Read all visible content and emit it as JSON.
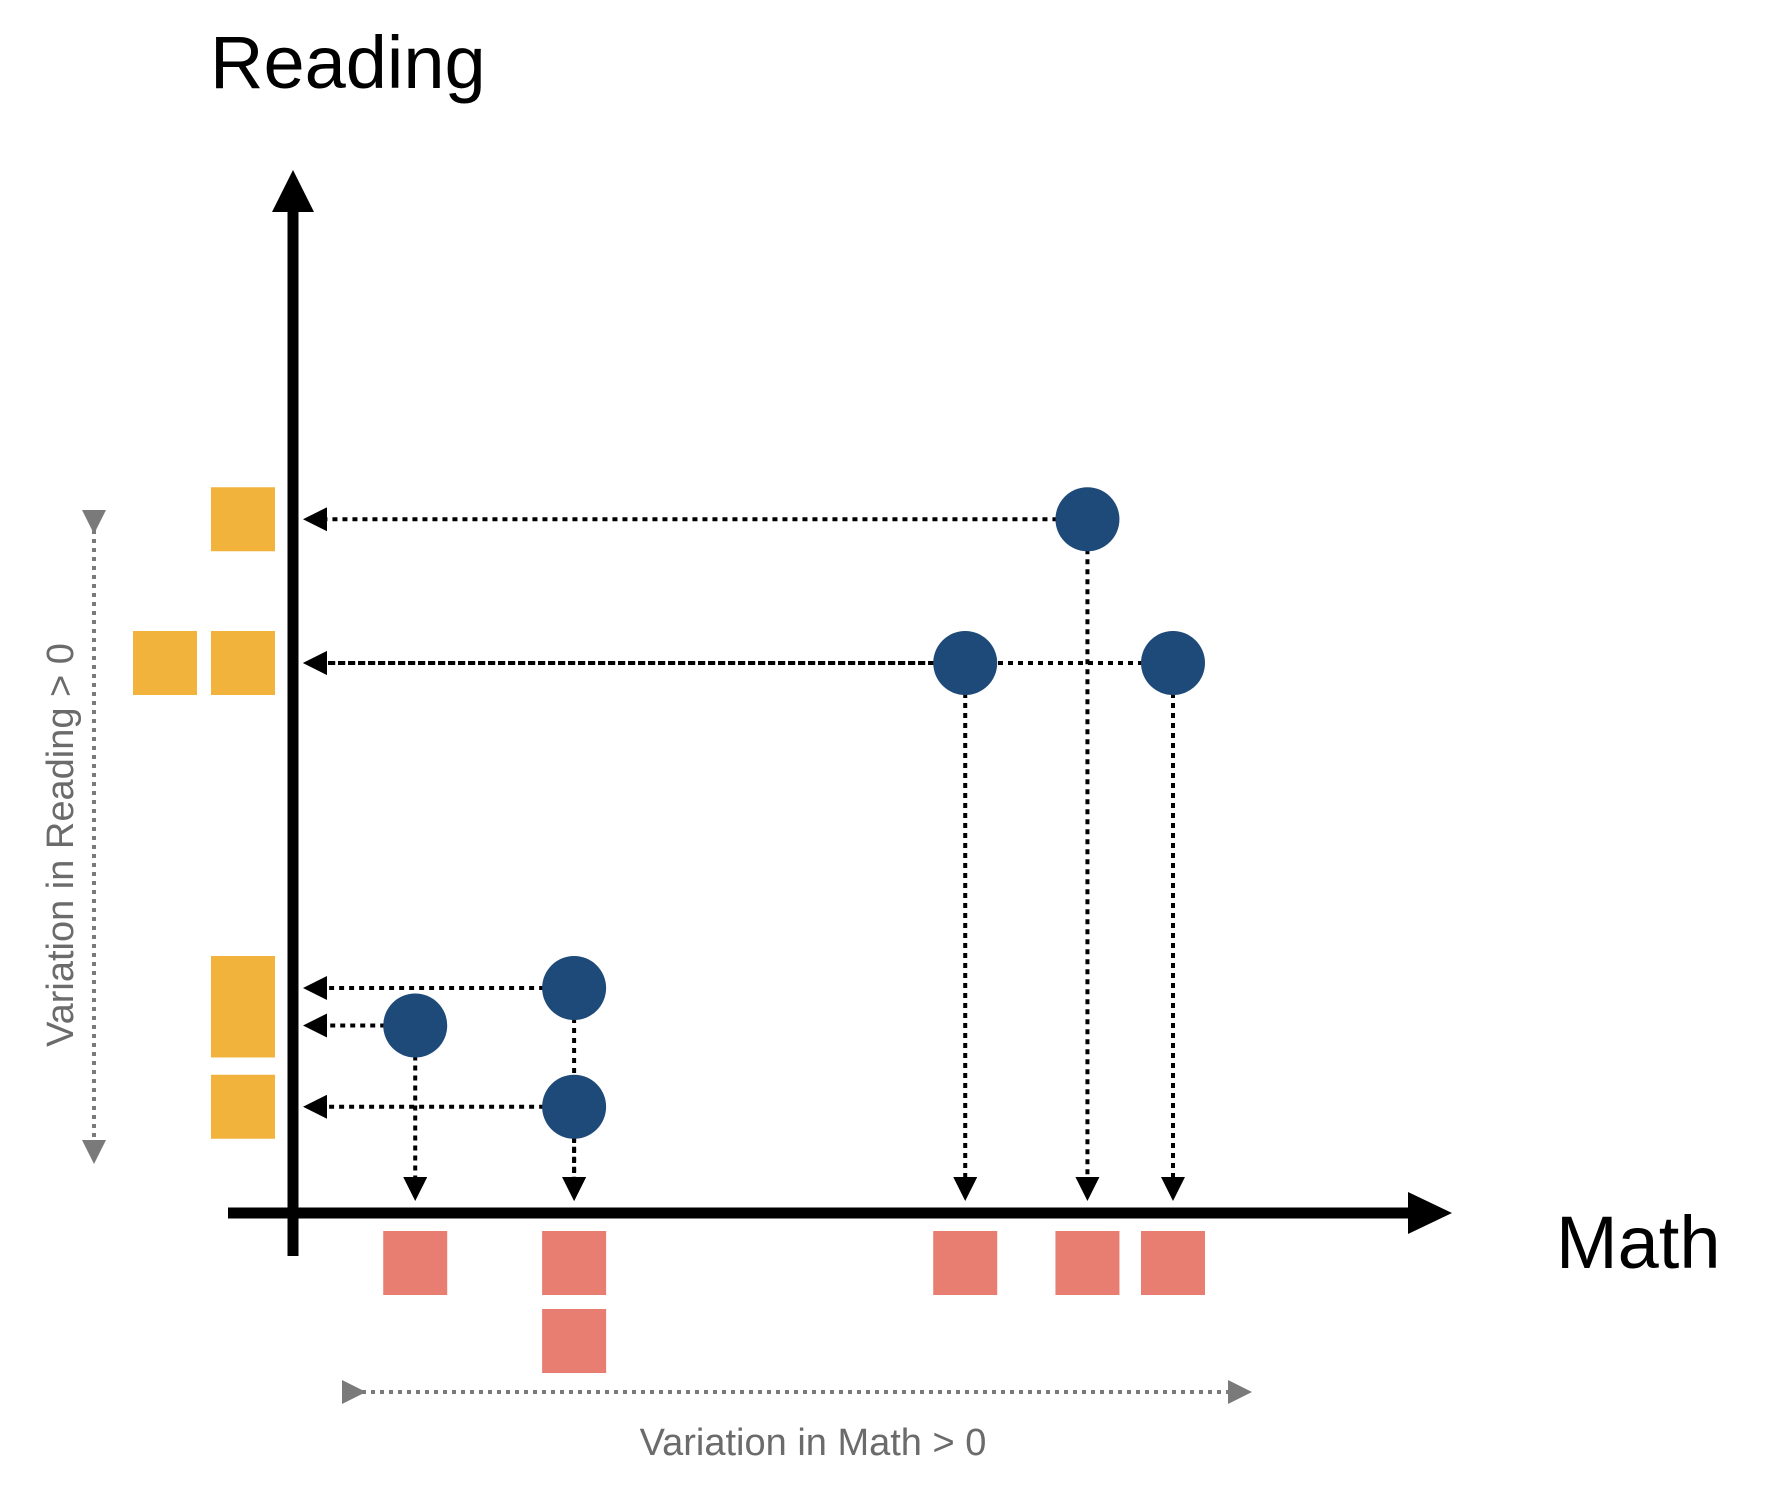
{
  "labels": {
    "y_axis": "Reading",
    "x_axis": "Math",
    "reading_variation": "Variation in Reading > 0",
    "math_variation": "Variation in Math > 0"
  },
  "colors": {
    "point": "#1e4a7a",
    "reading_marginal": "#f2b33d",
    "math_marginal": "#e87d72",
    "axis": "#000000",
    "variation_arrow": "#7a7a7a"
  },
  "points": [
    {
      "id": "a",
      "math": 1.0,
      "reading": 1.5
    },
    {
      "id": "b",
      "math": 2.3,
      "reading": 1.8
    },
    {
      "id": "c",
      "math": 2.3,
      "reading": 0.85
    },
    {
      "id": "d",
      "math": 5.5,
      "reading": 4.4
    },
    {
      "id": "e",
      "math": 6.5,
      "reading": 5.55
    },
    {
      "id": "f",
      "math": 7.2,
      "reading": 4.4
    }
  ],
  "scale": {
    "math_max": 9,
    "reading_max": 8
  }
}
